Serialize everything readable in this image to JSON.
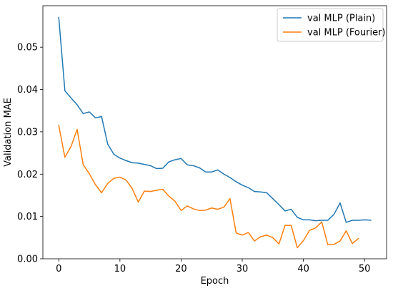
{
  "chart_data": {
    "type": "line",
    "title": "",
    "xlabel": "Epoch",
    "ylabel": "Validation MAE",
    "xlim": [
      -2.6,
      53.6
    ],
    "ylim": [
      0,
      0.0598
    ],
    "xticks": [
      0,
      10,
      20,
      30,
      40,
      50
    ],
    "xtick_labels": [
      "0",
      "10",
      "20",
      "30",
      "40",
      "50"
    ],
    "yticks": [
      0.0,
      0.01,
      0.02,
      0.03,
      0.04,
      0.05
    ],
    "ytick_labels": [
      "0.00",
      "0.01",
      "0.02",
      "0.03",
      "0.04",
      "0.05"
    ],
    "grid": false,
    "legend_position": "top-right",
    "series": [
      {
        "name": "val MLP (Plain)",
        "color": "#1f77b4",
        "x": [
          0,
          1,
          2,
          3,
          4,
          5,
          6,
          7,
          8,
          9,
          10,
          11,
          12,
          13,
          14,
          15,
          16,
          17,
          18,
          19,
          20,
          21,
          22,
          23,
          24,
          25,
          26,
          27,
          28,
          29,
          30,
          31,
          32,
          33,
          34,
          35,
          36,
          37,
          38,
          39,
          40,
          41,
          42,
          43,
          44,
          45,
          46,
          47,
          48,
          49,
          50,
          51
        ],
        "y": [
          0.057,
          0.0397,
          0.038,
          0.0364,
          0.0343,
          0.0347,
          0.0333,
          0.0336,
          0.0271,
          0.0247,
          0.0238,
          0.0232,
          0.0227,
          0.0226,
          0.0223,
          0.022,
          0.0213,
          0.0214,
          0.0229,
          0.0234,
          0.0237,
          0.0222,
          0.022,
          0.0215,
          0.0205,
          0.0205,
          0.021,
          0.02,
          0.0192,
          0.0182,
          0.0174,
          0.0168,
          0.0159,
          0.0158,
          0.0156,
          0.0142,
          0.0128,
          0.0113,
          0.0117,
          0.0098,
          0.0092,
          0.0092,
          0.009,
          0.0091,
          0.0091,
          0.0105,
          0.0132,
          0.0086,
          0.0091,
          0.0091,
          0.0092,
          0.0091
        ]
      },
      {
        "name": "val MLP (Fourier)",
        "color": "#ff7f0e",
        "x": [
          0,
          1,
          2,
          3,
          4,
          5,
          6,
          7,
          8,
          9,
          10,
          11,
          12,
          13,
          14,
          15,
          16,
          17,
          18,
          19,
          20,
          21,
          22,
          23,
          24,
          25,
          26,
          27,
          28,
          29,
          30,
          31,
          32,
          33,
          34,
          35,
          36,
          37,
          38,
          39,
          40,
          41,
          42,
          43,
          44,
          45,
          46,
          47,
          48,
          49
        ],
        "y": [
          0.0315,
          0.024,
          0.0265,
          0.0306,
          0.0222,
          0.0201,
          0.0175,
          0.0156,
          0.0178,
          0.019,
          0.0193,
          0.0186,
          0.0166,
          0.0134,
          0.016,
          0.0159,
          0.0162,
          0.0164,
          0.0148,
          0.0136,
          0.0114,
          0.0125,
          0.0118,
          0.0114,
          0.0115,
          0.012,
          0.0117,
          0.0122,
          0.0142,
          0.0061,
          0.0056,
          0.0062,
          0.0042,
          0.0052,
          0.0056,
          0.005,
          0.0035,
          0.0079,
          0.0079,
          0.0026,
          0.0043,
          0.0067,
          0.0073,
          0.0087,
          0.0033,
          0.0034,
          0.0042,
          0.0066,
          0.0036,
          0.0048
        ]
      }
    ]
  }
}
